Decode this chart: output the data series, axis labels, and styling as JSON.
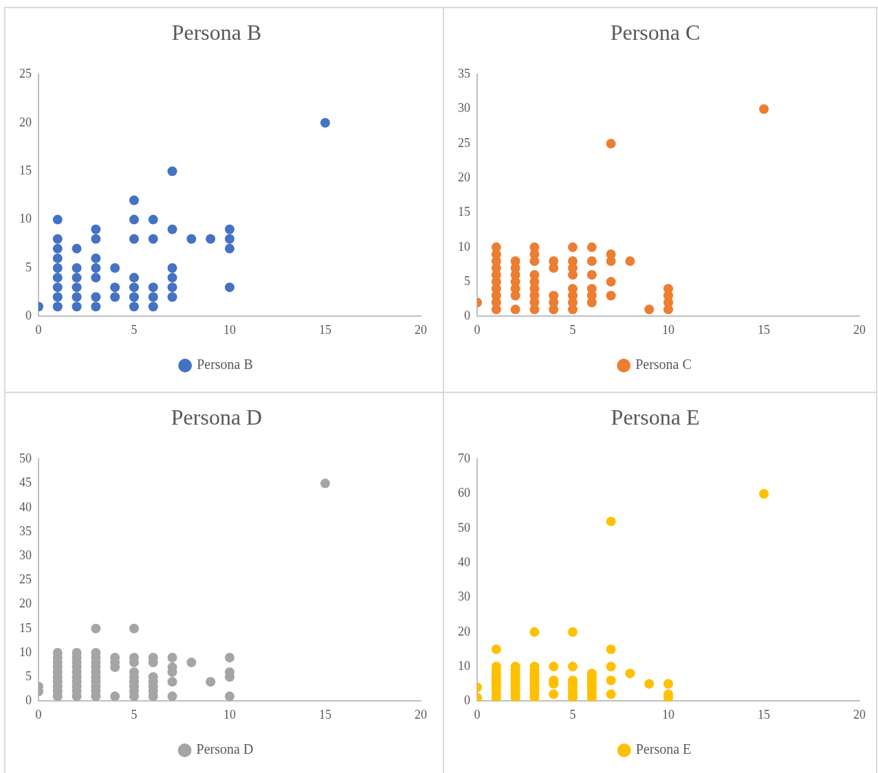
{
  "chart_data": [
    {
      "type": "scatter",
      "title": "Persona B",
      "xlim": [
        0,
        20
      ],
      "xticks": [
        0,
        5,
        10,
        15,
        20
      ],
      "ylim": [
        0,
        25
      ],
      "yticks": [
        0,
        5,
        10,
        15,
        20,
        25
      ],
      "grid": false,
      "legend": "bottom",
      "marker": "circle",
      "series": [
        {
          "name": "Persona B",
          "color": "#4472c4",
          "x": [
            0,
            1,
            1,
            1,
            1,
            1,
            1,
            1,
            1,
            1,
            2,
            2,
            2,
            2,
            2,
            2,
            3,
            3,
            3,
            3,
            3,
            3,
            3,
            4,
            4,
            4,
            5,
            5,
            5,
            5,
            5,
            5,
            5,
            6,
            6,
            6,
            6,
            6,
            7,
            7,
            7,
            7,
            7,
            7,
            8,
            9,
            10,
            10,
            10,
            10,
            15
          ],
          "values": [
            1,
            1,
            2,
            3,
            4,
            5,
            6,
            7,
            8,
            10,
            1,
            2,
            3,
            4,
            5,
            7,
            1,
            2,
            4,
            5,
            6,
            8,
            9,
            2,
            3,
            5,
            1,
            2,
            3,
            4,
            8,
            10,
            12,
            1,
            2,
            3,
            8,
            10,
            2,
            3,
            4,
            5,
            9,
            15,
            8,
            8,
            3,
            7,
            8,
            9,
            20
          ]
        }
      ]
    },
    {
      "type": "scatter",
      "title": "Persona C",
      "xlim": [
        0,
        20
      ],
      "xticks": [
        0,
        5,
        10,
        15,
        20
      ],
      "ylim": [
        0,
        35
      ],
      "yticks": [
        0,
        5,
        10,
        15,
        20,
        25,
        30,
        35
      ],
      "grid": false,
      "legend": "bottom",
      "marker": "circle",
      "series": [
        {
          "name": "Persona C",
          "color": "#ed7d31",
          "x": [
            0,
            1,
            1,
            1,
            1,
            1,
            1,
            1,
            1,
            1,
            1,
            2,
            2,
            2,
            2,
            2,
            2,
            2,
            3,
            3,
            3,
            3,
            3,
            3,
            3,
            3,
            3,
            4,
            4,
            4,
            4,
            4,
            5,
            5,
            5,
            5,
            5,
            5,
            5,
            5,
            6,
            6,
            6,
            6,
            6,
            6,
            7,
            7,
            7,
            7,
            7,
            8,
            9,
            10,
            10,
            10,
            10,
            15
          ],
          "values": [
            2,
            1,
            2,
            3,
            4,
            5,
            6,
            7,
            8,
            9,
            10,
            1,
            3,
            4,
            5,
            6,
            7,
            8,
            1,
            2,
            3,
            4,
            5,
            6,
            8,
            9,
            10,
            1,
            2,
            3,
            7,
            8,
            1,
            2,
            3,
            4,
            6,
            7,
            8,
            10,
            2,
            3,
            4,
            6,
            8,
            10,
            3,
            5,
            8,
            9,
            25,
            8,
            1,
            1,
            2,
            3,
            4,
            30
          ]
        }
      ]
    },
    {
      "type": "scatter",
      "title": "Persona D",
      "xlim": [
        0,
        20
      ],
      "xticks": [
        0,
        5,
        10,
        15,
        20
      ],
      "ylim": [
        0,
        50
      ],
      "yticks": [
        0,
        5,
        10,
        15,
        20,
        25,
        30,
        35,
        40,
        45,
        50
      ],
      "grid": false,
      "legend": "bottom",
      "marker": "circle",
      "series": [
        {
          "name": "Persona D",
          "color": "#a5a5a5",
          "x": [
            0,
            0,
            1,
            1,
            1,
            1,
            1,
            1,
            1,
            1,
            1,
            1,
            2,
            2,
            2,
            2,
            2,
            2,
            2,
            2,
            2,
            2,
            3,
            3,
            3,
            3,
            3,
            3,
            3,
            3,
            3,
            3,
            3,
            4,
            4,
            4,
            4,
            5,
            5,
            5,
            5,
            5,
            5,
            5,
            5,
            5,
            6,
            6,
            6,
            6,
            6,
            6,
            6,
            7,
            7,
            7,
            7,
            7,
            8,
            9,
            10,
            10,
            10,
            10,
            15
          ],
          "values": [
            2,
            3,
            1,
            2,
            3,
            4,
            5,
            6,
            7,
            8,
            9,
            10,
            1,
            2,
            3,
            4,
            5,
            6,
            7,
            8,
            9,
            10,
            1,
            2,
            3,
            4,
            5,
            6,
            7,
            8,
            9,
            10,
            15,
            1,
            7,
            8,
            9,
            1,
            2,
            3,
            4,
            5,
            6,
            8,
            9,
            15,
            1,
            2,
            3,
            4,
            5,
            8,
            9,
            1,
            4,
            6,
            7,
            9,
            8,
            4,
            1,
            5,
            6,
            9,
            45
          ]
        }
      ]
    },
    {
      "type": "scatter",
      "title": "Persona E",
      "xlim": [
        0,
        20
      ],
      "xticks": [
        0,
        5,
        10,
        15,
        20
      ],
      "ylim": [
        0,
        70
      ],
      "yticks": [
        0,
        10,
        20,
        30,
        40,
        50,
        60,
        70
      ],
      "grid": false,
      "legend": "bottom",
      "marker": "circle",
      "series": [
        {
          "name": "Persona E",
          "color": "#ffc000",
          "x": [
            0,
            0,
            1,
            1,
            1,
            1,
            1,
            1,
            1,
            1,
            1,
            1,
            1,
            2,
            2,
            2,
            2,
            2,
            2,
            2,
            2,
            2,
            2,
            3,
            3,
            3,
            3,
            3,
            3,
            3,
            3,
            3,
            3,
            3,
            4,
            4,
            4,
            4,
            5,
            5,
            5,
            5,
            5,
            5,
            5,
            5,
            6,
            6,
            6,
            6,
            6,
            6,
            6,
            6,
            7,
            7,
            7,
            7,
            7,
            8,
            9,
            10,
            10,
            10,
            15
          ],
          "values": [
            1,
            4,
            1,
            2,
            3,
            4,
            5,
            6,
            7,
            8,
            9,
            10,
            15,
            1,
            2,
            3,
            4,
            5,
            6,
            7,
            8,
            9,
            10,
            1,
            2,
            3,
            4,
            5,
            6,
            7,
            8,
            9,
            10,
            20,
            2,
            5,
            6,
            10,
            1,
            2,
            3,
            4,
            5,
            6,
            10,
            20,
            1,
            2,
            3,
            4,
            5,
            6,
            7,
            8,
            2,
            6,
            10,
            15,
            52,
            8,
            5,
            1,
            2,
            5,
            60
          ]
        }
      ]
    }
  ]
}
